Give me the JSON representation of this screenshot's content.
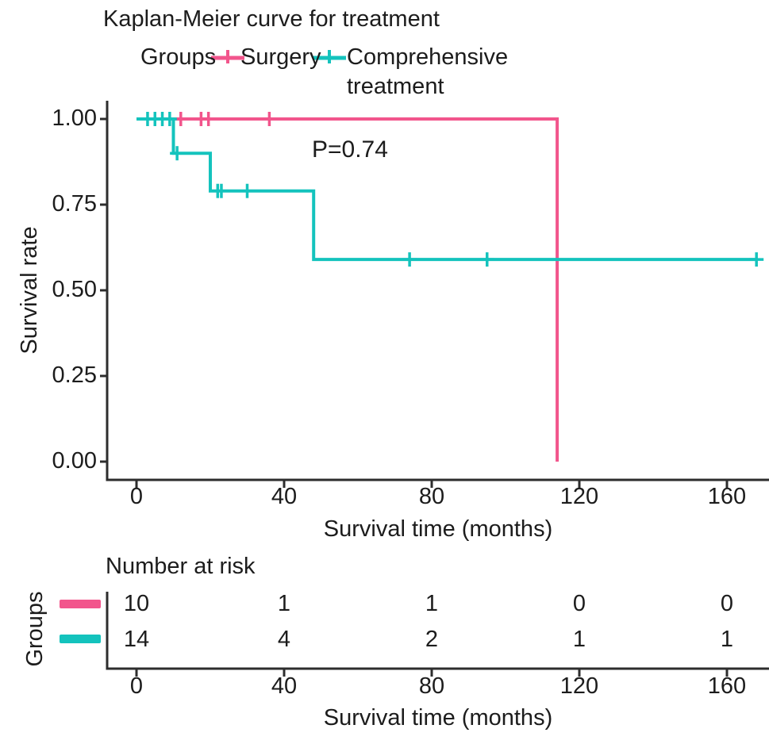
{
  "header": {
    "title": "Kaplan-Meier curve for treatment"
  },
  "legend": {
    "title": "Groups",
    "items": [
      {
        "label": "Surgery",
        "lines": [
          "Surgery"
        ],
        "color": "#F2558C"
      },
      {
        "label": "Comprehensive treatment",
        "lines": [
          "Comprehensive",
          "treatment"
        ],
        "color": "#14C3BD"
      }
    ]
  },
  "chart_data": {
    "type": "line",
    "subtype": "kaplan-meier-step",
    "title": "Kaplan-Meier curve for treatment",
    "xlabel": "Survival time (months)",
    "ylabel": "Survival rate",
    "xlim": [
      0,
      168
    ],
    "ylim": [
      0,
      1
    ],
    "x_ticks": [
      0,
      40,
      80,
      120,
      160
    ],
    "x_tick_labels": [
      "0",
      "40",
      "80",
      "120",
      "160"
    ],
    "y_ticks": [
      1.0,
      0.75,
      0.5,
      0.25,
      0.0
    ],
    "y_tick_labels": [
      "1.00",
      "0.75",
      "0.50",
      "0.25",
      "0.00"
    ],
    "grid": false,
    "legend_position": "top",
    "annotation": {
      "text": "P=0.74",
      "x_months": 48,
      "y_rate": 0.93
    },
    "series": [
      {
        "name": "Surgery",
        "color": "#F2558C",
        "steps": [
          [
            0,
            1.0
          ],
          [
            114,
            1.0
          ],
          [
            114,
            0.0
          ]
        ],
        "censors": [
          [
            12,
            1.0
          ],
          [
            17.5,
            1.0
          ],
          [
            19.5,
            1.0
          ],
          [
            36,
            1.0
          ]
        ]
      },
      {
        "name": "Comprehensive treatment",
        "color": "#14C3BD",
        "steps": [
          [
            0,
            1.0
          ],
          [
            10,
            1.0
          ],
          [
            10,
            0.9
          ],
          [
            20,
            0.9
          ],
          [
            20,
            0.79
          ],
          [
            48,
            0.79
          ],
          [
            48,
            0.59
          ],
          [
            168,
            0.59
          ]
        ],
        "censors": [
          [
            3,
            1.0
          ],
          [
            5,
            1.0
          ],
          [
            7,
            1.0
          ],
          [
            9,
            1.0
          ],
          [
            11,
            0.9
          ],
          [
            22,
            0.79
          ],
          [
            23,
            0.79
          ],
          [
            30,
            0.79
          ],
          [
            74,
            0.59
          ],
          [
            95,
            0.59
          ],
          [
            168,
            0.59
          ]
        ]
      }
    ]
  },
  "risk_table": {
    "title": "Number at risk",
    "ylabel": "Groups",
    "xlabel": "Survival time (months)",
    "times": [
      0,
      40,
      80,
      120,
      160
    ],
    "x_tick_labels": [
      "0",
      "40",
      "80",
      "120",
      "160"
    ],
    "rows": [
      {
        "name": "Surgery",
        "color": "#F2558C",
        "counts": [
          "10",
          "1",
          "1",
          "0",
          "0"
        ]
      },
      {
        "name": "Comprehensive treatment",
        "color": "#14C3BD",
        "counts": [
          "14",
          "4",
          "2",
          "1",
          "1"
        ]
      }
    ]
  }
}
